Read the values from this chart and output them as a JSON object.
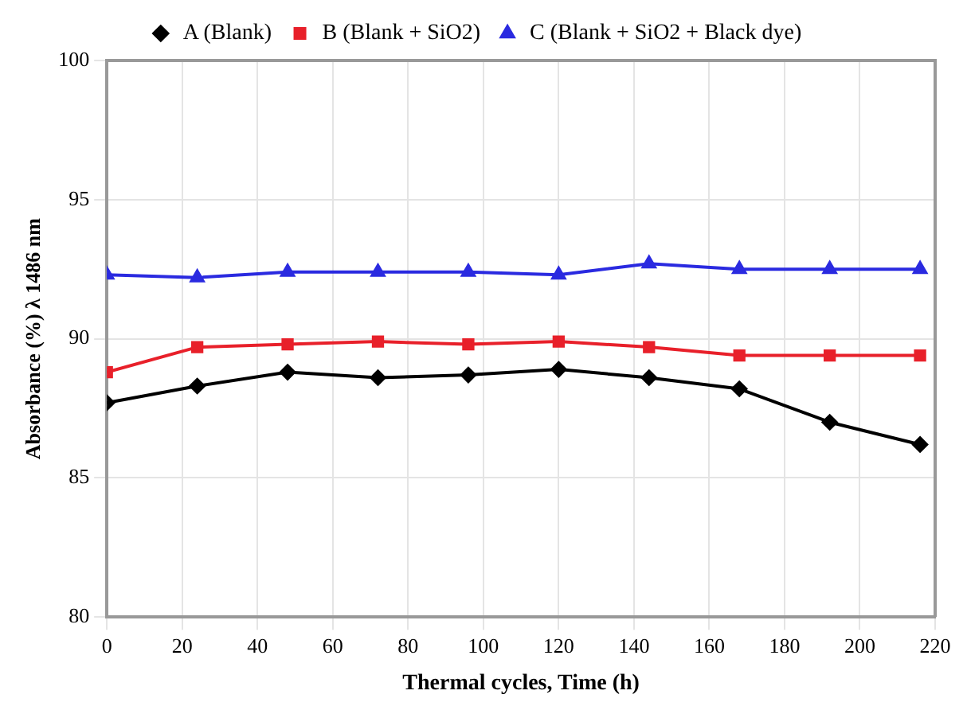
{
  "chart_data": {
    "type": "line",
    "xlabel": "Thermal cycles, Time (h)",
    "ylabel": "Absorbance (%) λ 1486 nm",
    "x": [
      0,
      24,
      48,
      72,
      96,
      120,
      144,
      168,
      192,
      216
    ],
    "series": [
      {
        "name": "A (Blank)",
        "color": "#000000",
        "marker": "diamond",
        "values": [
          87.7,
          88.3,
          88.8,
          88.6,
          88.7,
          88.9,
          88.6,
          88.2,
          87.0,
          86.2
        ]
      },
      {
        "name": "B (Blank + SiO2)",
        "color": "#e8202a",
        "marker": "square",
        "values": [
          88.8,
          89.7,
          89.8,
          89.9,
          89.8,
          89.9,
          89.7,
          89.4,
          89.4,
          89.4
        ]
      },
      {
        "name": "C (Blank + SiO2 + Black dye)",
        "color": "#2a2ae0",
        "marker": "triangle",
        "values": [
          92.3,
          92.2,
          92.4,
          92.4,
          92.4,
          92.3,
          92.7,
          92.5,
          92.5,
          92.5
        ]
      }
    ],
    "xlim": [
      0,
      220
    ],
    "xticks": [
      0,
      20,
      40,
      60,
      80,
      100,
      120,
      140,
      160,
      180,
      200,
      220
    ],
    "ylim": [
      80,
      100
    ],
    "yticks": [
      80,
      85,
      90,
      95,
      100
    ],
    "grid": true,
    "legend": "top",
    "line_style": "solid"
  }
}
